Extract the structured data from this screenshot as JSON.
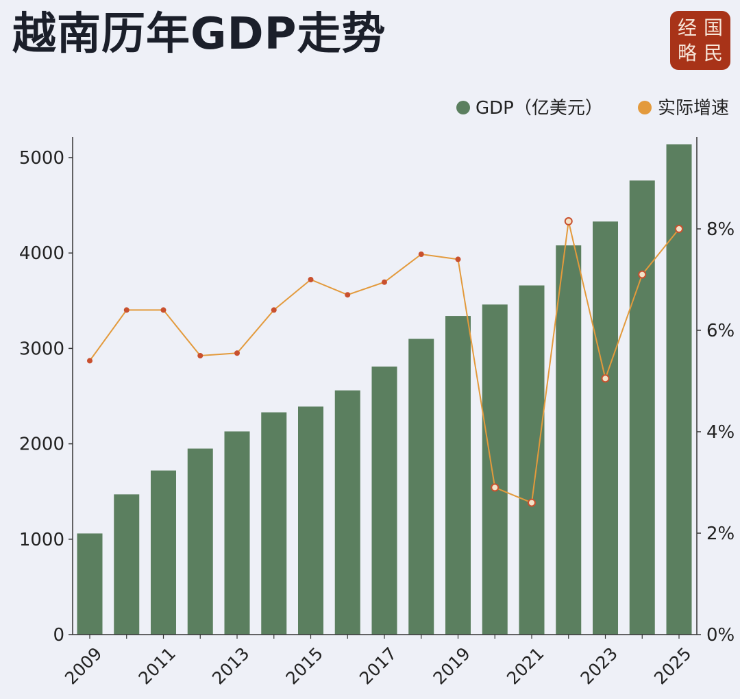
{
  "title": "越南历年GDP走势",
  "seal": {
    "chars": [
      "经",
      "国",
      "略",
      "民"
    ]
  },
  "colors": {
    "bar": "#5b7f5f",
    "line": "#e39a3c",
    "marker_stroke": "#c9502e",
    "marker_fill": "#f3e3c8",
    "axis": "#333333",
    "text": "#222222"
  },
  "chart_data": {
    "type": "bar+line",
    "years": [
      2009,
      2010,
      2011,
      2012,
      2013,
      2014,
      2015,
      2016,
      2017,
      2018,
      2019,
      2020,
      2021,
      2022,
      2023,
      2024,
      2025
    ],
    "x_tick_labels": [
      "2009",
      "2011",
      "2013",
      "2015",
      "2017",
      "2019",
      "2021",
      "2023",
      "2025"
    ],
    "series": [
      {
        "name": "GDP（亿美元）",
        "type": "bar",
        "axis": "left",
        "values": [
          1060,
          1470,
          1720,
          1950,
          2130,
          2330,
          2390,
          2560,
          2810,
          3100,
          3340,
          3460,
          3660,
          4080,
          4330,
          4760,
          5140
        ]
      },
      {
        "name": "实际增速",
        "type": "line",
        "axis": "right",
        "values": [
          5.4,
          6.4,
          6.4,
          5.5,
          5.55,
          6.4,
          7.0,
          6.7,
          6.95,
          7.5,
          7.4,
          2.9,
          2.6,
          8.15,
          5.05,
          7.1,
          8.0
        ]
      }
    ],
    "left_axis": {
      "ylim": [
        0,
        5200
      ],
      "ticks": [
        "0",
        "1000",
        "2000",
        "3000",
        "4000",
        "5000"
      ],
      "tick_values": [
        0,
        1000,
        2000,
        3000,
        4000,
        5000
      ]
    },
    "right_axis": {
      "ylim": [
        0,
        9.6
      ],
      "ticks": [
        "0%",
        "2%",
        "4%",
        "6%",
        "8%"
      ],
      "tick_values": [
        0,
        2,
        4,
        6,
        8
      ]
    },
    "legend": {
      "position": "top-right",
      "items": [
        {
          "label": "GDP（亿美元）",
          "color": "#5b7f5f"
        },
        {
          "label": "实际增速",
          "color": "#e39a3c"
        }
      ]
    }
  }
}
